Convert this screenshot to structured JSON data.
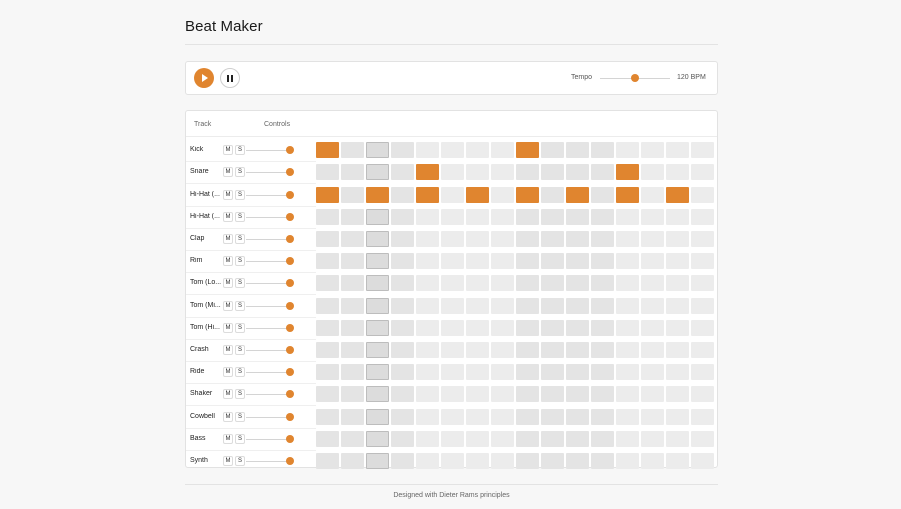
{
  "app": {
    "title": "Beat Maker"
  },
  "transport": {
    "tempo_label": "Tempo",
    "tempo_value": "120 BPM",
    "tempo_fraction": 0.5
  },
  "grid": {
    "header_track": "Track",
    "header_controls": "Controls",
    "mute_label": "M",
    "solo_label": "S",
    "steps": 16,
    "current_step": 2,
    "tracks": [
      {
        "name": "Kick",
        "volume": 1.0,
        "pattern": [
          1,
          0,
          0,
          0,
          0,
          0,
          0,
          0,
          1,
          0,
          0,
          0,
          0,
          0,
          0,
          0
        ]
      },
      {
        "name": "Snare",
        "volume": 1.0,
        "pattern": [
          0,
          0,
          0,
          0,
          1,
          0,
          0,
          0,
          0,
          0,
          0,
          0,
          1,
          0,
          0,
          0
        ]
      },
      {
        "name": "Hi-Hat (...",
        "volume": 1.0,
        "pattern": [
          1,
          0,
          1,
          0,
          1,
          0,
          1,
          0,
          1,
          0,
          1,
          0,
          1,
          0,
          1,
          0
        ]
      },
      {
        "name": "Hi-Hat (...",
        "volume": 1.0,
        "pattern": [
          0,
          0,
          0,
          0,
          0,
          0,
          0,
          0,
          0,
          0,
          0,
          0,
          0,
          0,
          0,
          0
        ]
      },
      {
        "name": "Clap",
        "volume": 1.0,
        "pattern": [
          0,
          0,
          0,
          0,
          0,
          0,
          0,
          0,
          0,
          0,
          0,
          0,
          0,
          0,
          0,
          0
        ]
      },
      {
        "name": "Rim",
        "volume": 1.0,
        "pattern": [
          0,
          0,
          0,
          0,
          0,
          0,
          0,
          0,
          0,
          0,
          0,
          0,
          0,
          0,
          0,
          0
        ]
      },
      {
        "name": "Tom (Lo...",
        "volume": 1.0,
        "pattern": [
          0,
          0,
          0,
          0,
          0,
          0,
          0,
          0,
          0,
          0,
          0,
          0,
          0,
          0,
          0,
          0
        ]
      },
      {
        "name": "Tom (Mi...",
        "volume": 1.0,
        "pattern": [
          0,
          0,
          0,
          0,
          0,
          0,
          0,
          0,
          0,
          0,
          0,
          0,
          0,
          0,
          0,
          0
        ]
      },
      {
        "name": "Tom (Hi...",
        "volume": 1.0,
        "pattern": [
          0,
          0,
          0,
          0,
          0,
          0,
          0,
          0,
          0,
          0,
          0,
          0,
          0,
          0,
          0,
          0
        ]
      },
      {
        "name": "Crash",
        "volume": 1.0,
        "pattern": [
          0,
          0,
          0,
          0,
          0,
          0,
          0,
          0,
          0,
          0,
          0,
          0,
          0,
          0,
          0,
          0
        ]
      },
      {
        "name": "Ride",
        "volume": 1.0,
        "pattern": [
          0,
          0,
          0,
          0,
          0,
          0,
          0,
          0,
          0,
          0,
          0,
          0,
          0,
          0,
          0,
          0
        ]
      },
      {
        "name": "Shaker",
        "volume": 1.0,
        "pattern": [
          0,
          0,
          0,
          0,
          0,
          0,
          0,
          0,
          0,
          0,
          0,
          0,
          0,
          0,
          0,
          0
        ]
      },
      {
        "name": "Cowbell",
        "volume": 1.0,
        "pattern": [
          0,
          0,
          0,
          0,
          0,
          0,
          0,
          0,
          0,
          0,
          0,
          0,
          0,
          0,
          0,
          0
        ]
      },
      {
        "name": "Bass",
        "volume": 1.0,
        "pattern": [
          0,
          0,
          0,
          0,
          0,
          0,
          0,
          0,
          0,
          0,
          0,
          0,
          0,
          0,
          0,
          0
        ]
      },
      {
        "name": "Synth",
        "volume": 1.0,
        "pattern": [
          0,
          0,
          0,
          0,
          0,
          0,
          0,
          0,
          0,
          0,
          0,
          0,
          0,
          0,
          0,
          0
        ]
      }
    ]
  },
  "footer": {
    "text": "Designed with Dieter Rams principles"
  },
  "colors": {
    "accent": "#e0852f",
    "cell_off": "#e4e4e4",
    "cell_off_alt": "#ececec"
  },
  "icons": {
    "play": "play-icon",
    "pause": "pause-icon"
  }
}
